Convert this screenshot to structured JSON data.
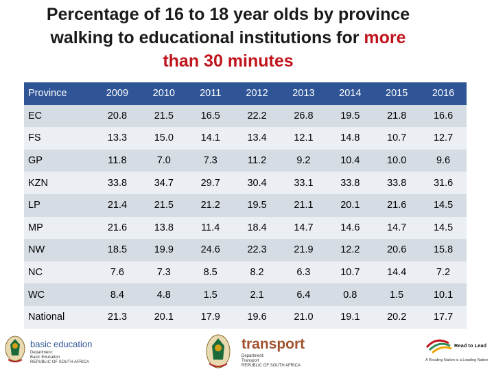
{
  "title": {
    "line1": "Percentage of 16 to 18 year olds by province",
    "line2_prefix": "walking to educational institutions for ",
    "line2_red": "more",
    "line3_red": "than 30 minutes"
  },
  "table": {
    "headers": [
      "Province",
      "2009",
      "2010",
      "2011",
      "2012",
      "2013",
      "2014",
      "2015",
      "2016"
    ],
    "rows": [
      {
        "province": "EC",
        "values": [
          "20.8",
          "21.5",
          "16.5",
          "22.2",
          "26.8",
          "19.5",
          "21.8",
          "16.6"
        ]
      },
      {
        "province": "FS",
        "values": [
          "13.3",
          "15.0",
          "14.1",
          "13.4",
          "12.1",
          "14.8",
          "10.7",
          "12.7"
        ]
      },
      {
        "province": "GP",
        "values": [
          "11.8",
          "7.0",
          "7.3",
          "11.2",
          "9.2",
          "10.4",
          "10.0",
          "9.6"
        ]
      },
      {
        "province": "KZN",
        "values": [
          "33.8",
          "34.7",
          "29.7",
          "30.4",
          "33.1",
          "33.8",
          "33.8",
          "31.6"
        ]
      },
      {
        "province": "LP",
        "values": [
          "21.4",
          "21.5",
          "21.2",
          "19.5",
          "21.1",
          "20.1",
          "21.6",
          "14.5"
        ]
      },
      {
        "province": "MP",
        "values": [
          "21.6",
          "13.8",
          "11.4",
          "18.4",
          "14.7",
          "14.6",
          "14.7",
          "14.5"
        ]
      },
      {
        "province": "NW",
        "values": [
          "18.5",
          "19.9",
          "24.6",
          "22.3",
          "21.9",
          "12.2",
          "20.6",
          "15.8"
        ]
      },
      {
        "province": "NC",
        "values": [
          "7.6",
          "7.3",
          "8.5",
          "8.2",
          "6.3",
          "10.7",
          "14.4",
          "7.2"
        ]
      },
      {
        "province": "WC",
        "values": [
          "8.4",
          "4.8",
          "1.5",
          "2.1",
          "6.4",
          "0.8",
          "1.5",
          "10.1"
        ]
      },
      {
        "province": "National",
        "values": [
          "21.3",
          "20.1",
          "17.9",
          "19.6",
          "21.0",
          "19.1",
          "20.2",
          "17.7"
        ]
      }
    ]
  },
  "footer": {
    "basic_education": {
      "name": "basic education",
      "line1": "Department:",
      "line2": "Basic Education",
      "line3": "REPUBLIC OF SOUTH AFRICA"
    },
    "transport": {
      "name": "transport",
      "line1": "Department:",
      "line2": "Transport",
      "line3": "REPUBLIC OF SOUTH AFRICA"
    },
    "read_to_lead": {
      "name": "Read to Lead",
      "tagline": "A Reading Nation is a Leading Nation"
    }
  },
  "colors": {
    "header_bg": "#2f5597",
    "row_odd": "#d6dce4",
    "row_even": "#ebeef3",
    "accent_red": "#c0141c",
    "transport_brown": "#a0522d"
  }
}
